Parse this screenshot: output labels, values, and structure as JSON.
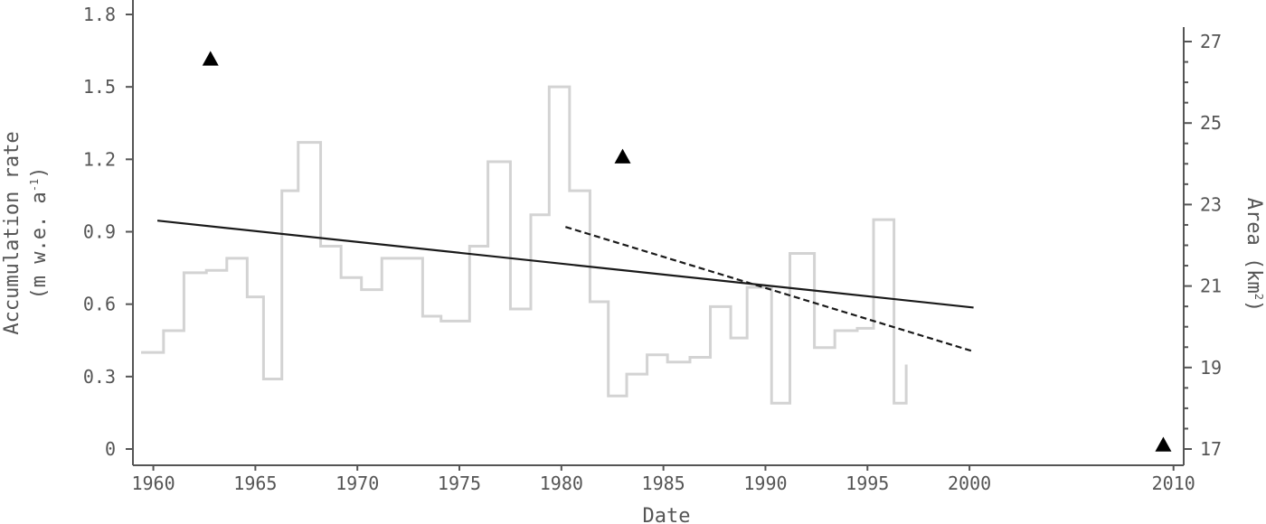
{
  "chart_data": {
    "type": "line",
    "xlabel": "Date",
    "ylabel": "Accumulation rate",
    "ylabel_units": "(m w.e. a",
    "ylabel_units_sup": "-1",
    "ylabel_units_end": ")",
    "y2label": "Area (km",
    "y2label_sup": "2",
    "y2label_end": ")",
    "xlim": [
      1959,
      2010.5
    ],
    "ylim": [
      0,
      1.8
    ],
    "y2lim": [
      17,
      27
    ],
    "x_ticks": [
      "1960",
      "1965",
      "1970",
      "1975",
      "1980",
      "1985",
      "1990",
      "1995",
      "2000",
      "2010"
    ],
    "y_ticks": [
      "0",
      "0.3",
      "0.6",
      "0.9",
      "1.2",
      "1.5",
      "1.8"
    ],
    "y2_ticks": [
      "17",
      "19",
      "21",
      "23",
      "25",
      "27"
    ],
    "accumulation_series": {
      "style": "step",
      "color": "#d3d3d3",
      "x": [
        1959.4,
        1960.5,
        1961.5,
        1962.6,
        1963.6,
        1964.6,
        1965.4,
        1966.3,
        1967.1,
        1968.2,
        1969.2,
        1970.2,
        1971.2,
        1972.2,
        1973.2,
        1974.1,
        1975.5,
        1976.4,
        1977.5,
        1978.5,
        1979.4,
        1980.4,
        1981.4,
        1982.3,
        1983.2,
        1984.2,
        1985.2,
        1986.3,
        1987.3,
        1988.3,
        1989.1,
        1990.3,
        1991.2,
        1992.4,
        1993.4,
        1994.5,
        1995.3,
        1996.3,
        1996.9
      ],
      "y": [
        0.4,
        0.49,
        0.73,
        0.74,
        0.79,
        0.63,
        0.29,
        1.07,
        1.27,
        0.84,
        0.71,
        0.66,
        0.79,
        0.79,
        0.55,
        0.53,
        0.84,
        1.19,
        0.58,
        0.97,
        1.5,
        1.07,
        0.61,
        0.22,
        0.31,
        0.39,
        0.36,
        0.38,
        0.59,
        0.46,
        0.67,
        0.19,
        0.81,
        0.42,
        0.49,
        0.5,
        0.95,
        0.19,
        0.3
      ],
      "end_y": 0.35
    },
    "trend_full": {
      "style": "solid",
      "color": "#1a1a1a",
      "x": [
        1960.2,
        2000.2
      ],
      "y": [
        0.946,
        0.586
      ]
    },
    "trend_recent": {
      "style": "dashed",
      "color": "#1a1a1a",
      "x": [
        1980.2,
        2000.2
      ],
      "y": [
        0.92,
        0.404
      ]
    },
    "area_points": {
      "marker": "triangle",
      "color": "#000000",
      "x": [
        1962.8,
        1983.0,
        2009.5
      ],
      "y2": [
        26.57,
        24.17,
        17.1
      ]
    },
    "grid": false,
    "legend": "none"
  }
}
